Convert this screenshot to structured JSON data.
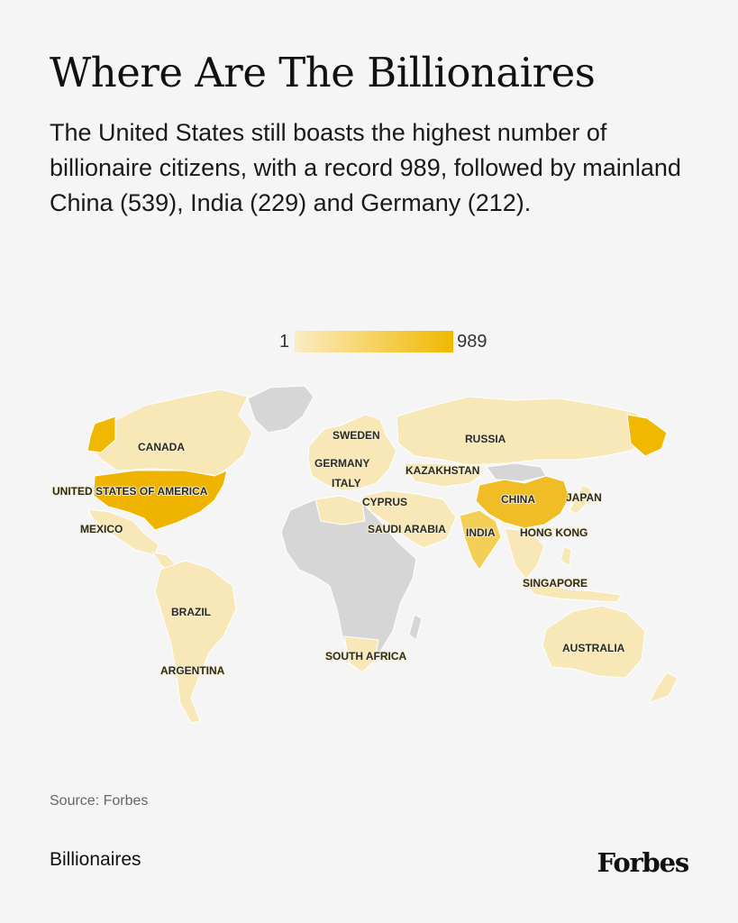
{
  "header": {
    "title": "Where Are The Billionaires",
    "subtitle": "The United States still boasts the highest number of billionaire citizens, with a record 989, followed by mainland China (539), India (229) and Germany (212)."
  },
  "legend": {
    "min_label": "1",
    "max_label": "989",
    "low_color": "#fbecc2",
    "high_color": "#f0b800"
  },
  "colors": {
    "no_data": "#d6d6d6",
    "low": "#f8e8b8",
    "mid": "#f3cf55",
    "high": "#efb400",
    "background": "#f5f5f5"
  },
  "map_labels": {
    "canada": "CANADA",
    "usa": "UNITED STATES OF AMERICA",
    "mexico": "MEXICO",
    "brazil": "BRAZIL",
    "argentina": "ARGENTINA",
    "sweden": "SWEDEN",
    "germany": "GERMANY",
    "italy": "ITALY",
    "cyprus": "CYPRUS",
    "russia": "RUSSIA",
    "kazakhstan": "KAZAKHSTAN",
    "saudi_arabia": "SAUDI ARABIA",
    "india": "INDIA",
    "china": "CHINA",
    "japan": "JAPAN",
    "hong_kong": "HONG KONG",
    "singapore": "SINGAPORE",
    "south_africa": "SOUTH AFRICA",
    "australia": "AUSTRALIA"
  },
  "source": "Source: Forbes",
  "footer": {
    "section": "Billionaires",
    "logo": "Forbes"
  }
}
